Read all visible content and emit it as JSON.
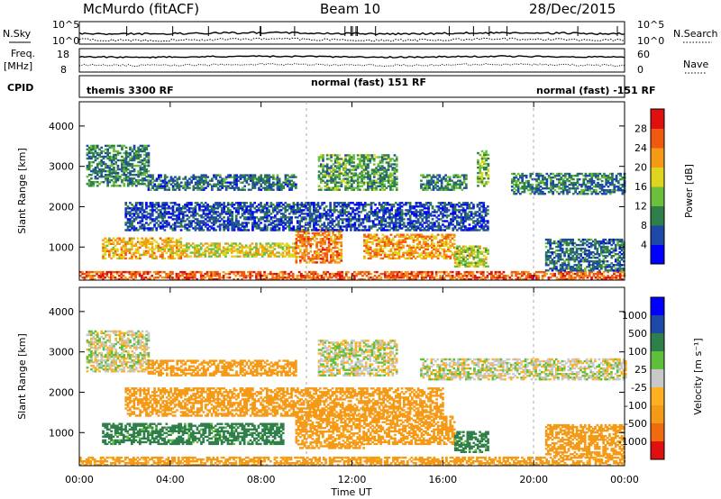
{
  "header": {
    "station": "McMurdo (fitACF)",
    "beam": "Beam 10",
    "date": "28/Dec/2015"
  },
  "aux_labels": {
    "nsky": "N.Sky",
    "freq_line1": "Freq.",
    "freq_line2": "[MHz]",
    "cpid": "CPID",
    "nsearch": "N.Search",
    "nave": "Nave",
    "nsky_ticks": [
      "10^5",
      "10^0"
    ],
    "nsearch_ticks": [
      "10^5",
      "10^0"
    ],
    "freq_ticks": [
      "18",
      "8"
    ],
    "nave_ticks": [
      "60",
      "0"
    ]
  },
  "cpid_segments": [
    {
      "label": "themis 3300 RF",
      "start_hour": 0
    },
    {
      "label": "normal (fast) 151 RF",
      "start_hour": 10
    },
    {
      "label": "normal (fast) -151 RF",
      "start_hour": 20
    }
  ],
  "colors": {
    "power_scale": [
      "#0000ff",
      "#1e48a8",
      "#2f7f4a",
      "#6cbf3a",
      "#e0d51e",
      "#f59a16",
      "#f05a10",
      "#e01010"
    ],
    "velocity_scale": [
      "#e01010",
      "#f06a10",
      "#f59a16",
      "#ffb020",
      "#c8c8c8",
      "#5fbf3a",
      "#2f7f4a",
      "#1e48a8",
      "#0000ff"
    ]
  },
  "chart_data": [
    {
      "type": "heatmap",
      "name": "power",
      "ylabel": "Slant Range [km]",
      "xlabel": "Time UT",
      "x_ticks": [
        "00:00",
        "04:00",
        "08:00",
        "12:00",
        "16:00",
        "20:00",
        "00:00"
      ],
      "y_ticks": [
        "1000",
        "2000",
        "3000",
        "4000"
      ],
      "xlim_hours": [
        0,
        24
      ],
      "ylim_km": [
        180,
        4600
      ],
      "colorbar_label": "Power [dB]",
      "colorbar_ticks": [
        "4",
        "8",
        "12",
        "16",
        "20",
        "24",
        "28"
      ],
      "clim": [
        0,
        30
      ],
      "regions": [
        {
          "t0": 0.3,
          "t1": 3.0,
          "r0": 2500,
          "r1": 3500,
          "value": 10
        },
        {
          "t0": 3.0,
          "t1": 9.5,
          "r0": 2400,
          "r1": 2800,
          "value": 8
        },
        {
          "t0": 1.0,
          "t1": 4.5,
          "r0": 700,
          "r1": 1200,
          "value": 20
        },
        {
          "t0": 4.5,
          "t1": 9.5,
          "r0": 750,
          "r1": 1100,
          "value": 18
        },
        {
          "t0": 9.5,
          "t1": 11.5,
          "r0": 600,
          "r1": 1450,
          "value": 24
        },
        {
          "t0": 12.5,
          "t1": 16.5,
          "r0": 700,
          "r1": 1300,
          "value": 22
        },
        {
          "t0": 16.5,
          "t1": 18.0,
          "r0": 500,
          "r1": 1000,
          "value": 16
        },
        {
          "t0": 10.5,
          "t1": 14.0,
          "r0": 2400,
          "r1": 3300,
          "value": 12
        },
        {
          "t0": 15.0,
          "t1": 17.0,
          "r0": 2400,
          "r1": 2800,
          "value": 10
        },
        {
          "t0": 17.5,
          "t1": 18.0,
          "r0": 2500,
          "r1": 3400,
          "value": 14
        },
        {
          "t0": 19.0,
          "t1": 24.0,
          "r0": 2300,
          "r1": 2800,
          "value": 9
        },
        {
          "t0": 0.0,
          "t1": 24.0,
          "r0": 180,
          "r1": 380,
          "value": 26
        },
        {
          "t0": 2.0,
          "t1": 18.0,
          "r0": 1400,
          "r1": 2100,
          "value": 6
        },
        {
          "t0": 20.5,
          "t1": 24.0,
          "r0": 400,
          "r1": 1200,
          "value": 8
        }
      ]
    },
    {
      "type": "heatmap",
      "name": "velocity",
      "ylabel": "Slant Range [km]",
      "xlabel": "Time UT",
      "x_ticks": [
        "00:00",
        "04:00",
        "08:00",
        "12:00",
        "16:00",
        "20:00",
        "00:00"
      ],
      "y_ticks": [
        "1000",
        "2000",
        "3000",
        "4000"
      ],
      "xlim_hours": [
        0,
        24
      ],
      "ylim_km": [
        180,
        4600
      ],
      "colorbar_label": "Velocity [m s⁻¹]",
      "colorbar_ticks": [
        "1000",
        "500",
        "100",
        "25",
        "-25",
        "-100",
        "-500",
        "-1000"
      ],
      "regions": [
        {
          "t0": 0.3,
          "t1": 3.0,
          "r0": 2500,
          "r1": 3500,
          "value": 0
        },
        {
          "t0": 3.0,
          "t1": 9.5,
          "r0": 2400,
          "r1": 2800,
          "value": -300
        },
        {
          "t0": 1.0,
          "t1": 9.0,
          "r0": 700,
          "r1": 1200,
          "value": 150
        },
        {
          "t0": 9.5,
          "t1": 12.5,
          "r0": 600,
          "r1": 1450,
          "value": -150
        },
        {
          "t0": 12.5,
          "t1": 16.5,
          "r0": 700,
          "r1": 1400,
          "value": -400
        },
        {
          "t0": 16.5,
          "t1": 18.0,
          "r0": 500,
          "r1": 1000,
          "value": 150
        },
        {
          "t0": 10.5,
          "t1": 14.0,
          "r0": 2400,
          "r1": 3300,
          "value": 0
        },
        {
          "t0": 15.0,
          "t1": 24.0,
          "r0": 2300,
          "r1": 2800,
          "value": 0
        },
        {
          "t0": 0.0,
          "t1": 24.0,
          "r0": 180,
          "r1": 380,
          "value": -150
        },
        {
          "t0": 2.0,
          "t1": 16.0,
          "r0": 1400,
          "r1": 2100,
          "value": -250
        },
        {
          "t0": 20.5,
          "t1": 24.0,
          "r0": 400,
          "r1": 1200,
          "value": -300
        }
      ]
    }
  ]
}
